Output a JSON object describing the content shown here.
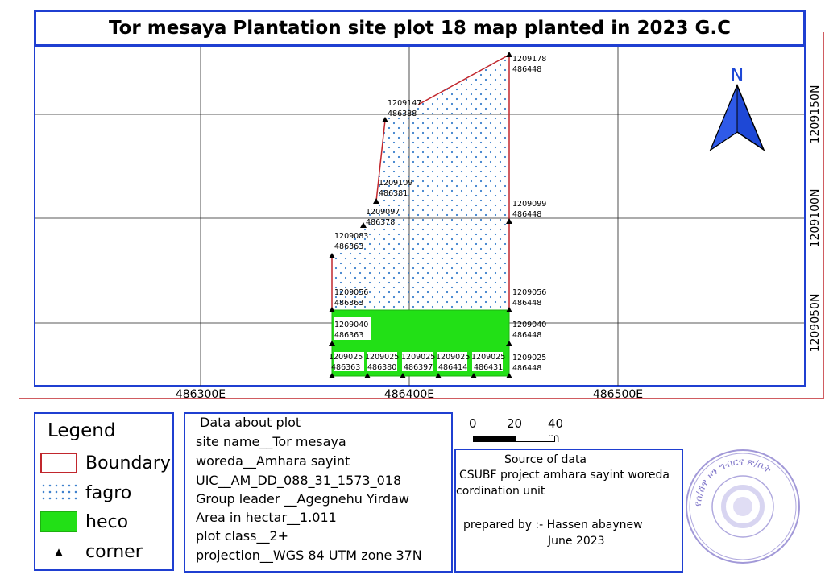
{
  "title": "Tor mesaya Plantation site plot 18 map planted in 2023 G.C",
  "axes": {
    "easting_labels": [
      "486300E",
      "486400E",
      "486500E"
    ],
    "northing_labels": [
      "1209150N",
      "1209100N",
      "1209050N"
    ]
  },
  "north_arrow": {
    "label": "N",
    "icon": "north-arrow-icon"
  },
  "points": [
    {
      "n": "1209178",
      "e": "486448"
    },
    {
      "n": "1209147",
      "e": "486388"
    },
    {
      "n": "1209109",
      "e": "486381"
    },
    {
      "n": "1209097",
      "e": "486378"
    },
    {
      "n": "1209083",
      "e": "486363"
    },
    {
      "n": "1209099",
      "e": "486448"
    },
    {
      "n": "1209056",
      "e": "486363"
    },
    {
      "n": "1209056",
      "e": "486448"
    },
    {
      "n": "1209040",
      "e": "486363"
    },
    {
      "n": "1209040",
      "e": "486448"
    },
    {
      "n": "1209025",
      "e": "486363"
    },
    {
      "n": "1209025",
      "e": "486380"
    },
    {
      "n": "1209025",
      "e": "486397"
    },
    {
      "n": "1209025",
      "e": "486414"
    },
    {
      "n": "1209025",
      "e": "486431"
    },
    {
      "n": "1209025",
      "e": "486448"
    }
  ],
  "legend": {
    "title": "Legend",
    "items": [
      {
        "label": "Boundary",
        "color": "#c1272d"
      },
      {
        "label": "fagro",
        "color": "#3a7ecc"
      },
      {
        "label": "heco",
        "color": "#22e016"
      },
      {
        "label": "corner",
        "icon": "triangle-icon"
      }
    ]
  },
  "plot_data": {
    "lines": [
      "Data about plot",
      "site name__Tor mesaya",
      "woreda__Amhara sayint",
      "UIC__AM_DD_088_31_1573_018",
      "Group leader __Agegnehu Yirdaw",
      "Area in hectar__1.011",
      "plot class__2+",
      "projection__WGS 84 UTM zone 37N"
    ]
  },
  "scale": {
    "labels": [
      "0",
      "20",
      "40 m"
    ]
  },
  "source": {
    "heading": "Source of data",
    "line1": "CSUBF project amhara sayint woreda",
    "line2": "cordination unit",
    "prepared": "prepared by :- Hassen abaynew",
    "date": "June 2023"
  },
  "stamp": {
    "text": "የሰ/ሸዋ ዞን ግብርና ጽ/ቤት",
    "icon": "official-seal-icon"
  }
}
